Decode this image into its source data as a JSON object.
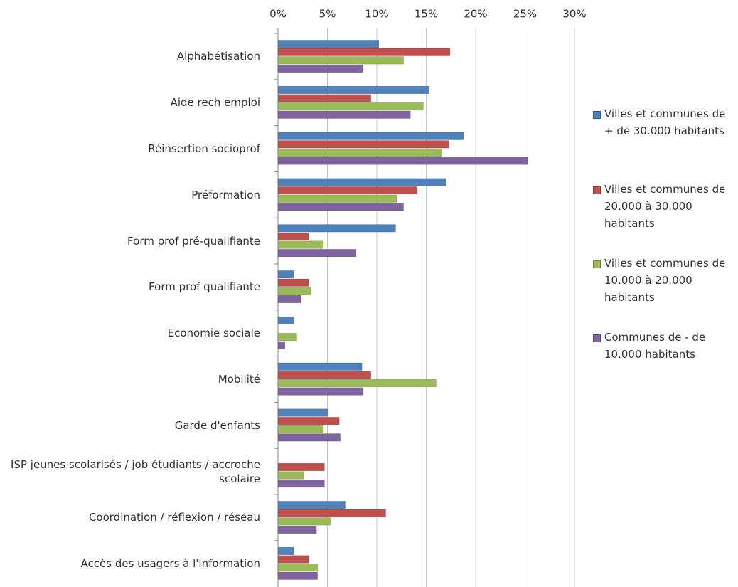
{
  "chart_data": {
    "type": "barh",
    "categories": [
      "Alphabétisation",
      "Aide rech emploi",
      "Réinsertion socioprof",
      "Préformation",
      "Form prof pré-qualifiante",
      "Form prof qualifiante",
      "Economie sociale",
      "Mobilité",
      "Garde d'enfants",
      "ISP jeunes scolarisés / job étudiants / accroche scolaire",
      "Coordination / réflexion / réseau",
      "Accès des usagers  à l'information"
    ],
    "series": [
      {
        "name": "Villes et communes de + de 30.000 habitants",
        "color": "#4f81bd",
        "values": [
          10.2,
          15.3,
          18.8,
          17.0,
          11.9,
          1.6,
          1.6,
          8.5,
          5.1,
          0,
          6.8,
          1.6
        ]
      },
      {
        "name": "Villes et communes de 20.000 à 30.000 habitants",
        "color": "#c0504d",
        "values": [
          17.4,
          9.4,
          17.3,
          14.1,
          3.1,
          3.1,
          0,
          9.4,
          6.2,
          4.7,
          10.9,
          3.1
        ]
      },
      {
        "name": "Villes et communes de 10.000 à 20.000 habitants",
        "color": "#9bbb59",
        "values": [
          12.7,
          14.7,
          16.6,
          12.0,
          4.6,
          3.3,
          1.9,
          16.0,
          4.6,
          2.6,
          5.3,
          4.0
        ]
      },
      {
        "name": "Communes de - de 10.000 habitants",
        "color": "#8064a2",
        "values": [
          8.6,
          13.4,
          25.3,
          12.7,
          7.9,
          2.3,
          0.7,
          8.6,
          6.3,
          4.7,
          3.9,
          4.0
        ]
      }
    ],
    "xlim": [
      0,
      30
    ],
    "xticks": [
      {
        "value": 0,
        "label": "0%"
      },
      {
        "value": 5,
        "label": "5%"
      },
      {
        "value": 10,
        "label": "10%"
      },
      {
        "value": 15,
        "label": "15%"
      },
      {
        "value": 20,
        "label": "20%"
      },
      {
        "value": 25,
        "label": "25%"
      },
      {
        "value": 30,
        "label": "30%"
      }
    ],
    "grid": true,
    "legend": "right"
  }
}
